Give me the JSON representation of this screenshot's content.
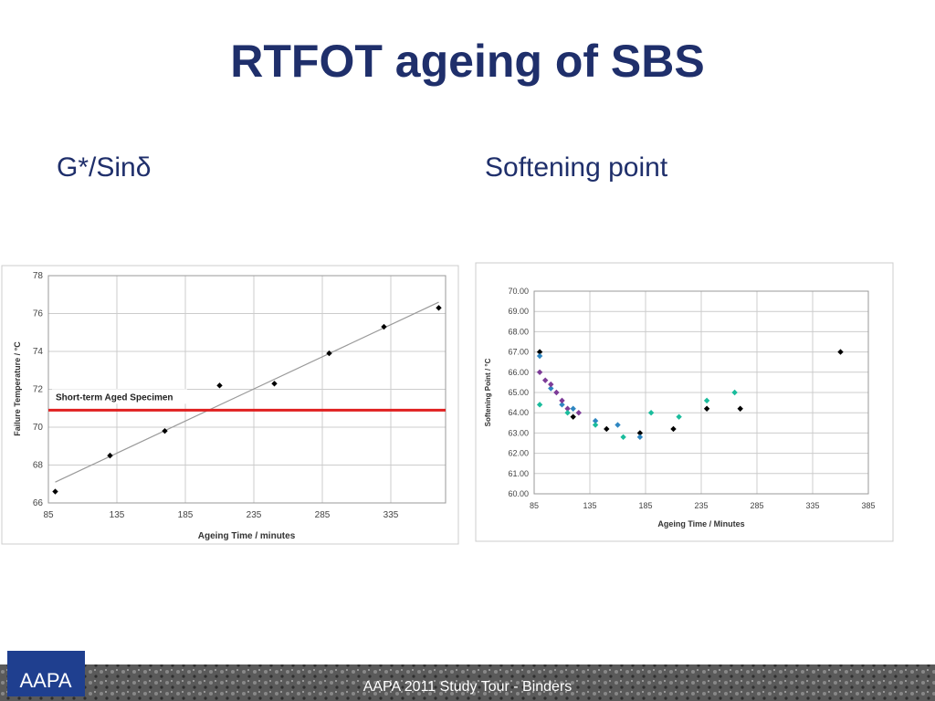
{
  "title": "RTFOT ageing of SBS",
  "left_heading": "G*/Sinδ",
  "right_heading": "Softening point",
  "footer": "AAPA 2011 Study Tour - Binders",
  "logo": "AAPA",
  "chart_data": [
    {
      "type": "scatter",
      "xlabel": "Ageing Time / minutes",
      "ylabel": "Failure Temperature / °C",
      "xlim": [
        85,
        375
      ],
      "xticks": [
        85,
        135,
        185,
        235,
        285,
        335
      ],
      "ylim": [
        66,
        78
      ],
      "yticks": [
        66,
        68,
        70,
        72,
        74,
        76,
        78
      ],
      "grid": true,
      "series": [
        {
          "color": "#000000",
          "x": [
            90,
            130,
            170,
            210,
            250,
            290,
            330,
            370
          ],
          "values": [
            66.6,
            68.5,
            69.8,
            72.2,
            72.3,
            73.9,
            75.3,
            76.3
          ]
        }
      ],
      "trendline": {
        "color": "#999999",
        "x": [
          90,
          370
        ],
        "values": [
          67.1,
          76.6
        ]
      },
      "reference_line": {
        "value": 70.9,
        "label": "Short-term Aged Specimen",
        "color": "#e02020"
      }
    },
    {
      "type": "scatter",
      "xlabel": "Ageing Time / Minutes",
      "ylabel": "Softening Point / °C",
      "xlim": [
        85,
        385
      ],
      "xticks": [
        85,
        135,
        185,
        235,
        285,
        335,
        385
      ],
      "ylim": [
        60,
        70
      ],
      "yticks": [
        {
          "value": 60,
          "label": "60.00"
        },
        {
          "value": 61,
          "label": "61.00"
        },
        {
          "value": 62,
          "label": "62.00"
        },
        {
          "value": 63,
          "label": "63.00"
        },
        {
          "value": 64,
          "label": "64.00"
        },
        {
          "value": 65,
          "label": "65.00"
        },
        {
          "value": 66,
          "label": "66.00"
        },
        {
          "value": 67,
          "label": "67.00"
        },
        {
          "value": 68,
          "label": "68.00"
        },
        {
          "value": 69,
          "label": "69.00"
        },
        {
          "value": 70,
          "label": "70.00"
        }
      ],
      "grid": true,
      "series": [
        {
          "color": "#000000",
          "x": [
            90,
            120,
            150,
            180,
            210,
            240,
            270,
            360
          ],
          "values": [
            67.0,
            63.8,
            63.2,
            63.0,
            63.2,
            64.2,
            64.2,
            67.0
          ]
        },
        {
          "color": "#2e86c1",
          "x": [
            90,
            100,
            110,
            120,
            140,
            160,
            180
          ],
          "values": [
            66.8,
            65.2,
            64.4,
            64.2,
            63.6,
            63.4,
            62.8
          ]
        },
        {
          "color": "#7d3c98",
          "x": [
            90,
            95,
            100,
            105,
            110,
            115,
            125
          ],
          "values": [
            66.0,
            65.6,
            65.4,
            65.0,
            64.6,
            64.2,
            64.0
          ]
        },
        {
          "color": "#1abc9c",
          "x": [
            90,
            115,
            140,
            165,
            190,
            215,
            240,
            265
          ],
          "values": [
            64.4,
            64.0,
            63.4,
            62.8,
            64.0,
            63.8,
            64.6,
            65.0
          ]
        }
      ]
    }
  ]
}
